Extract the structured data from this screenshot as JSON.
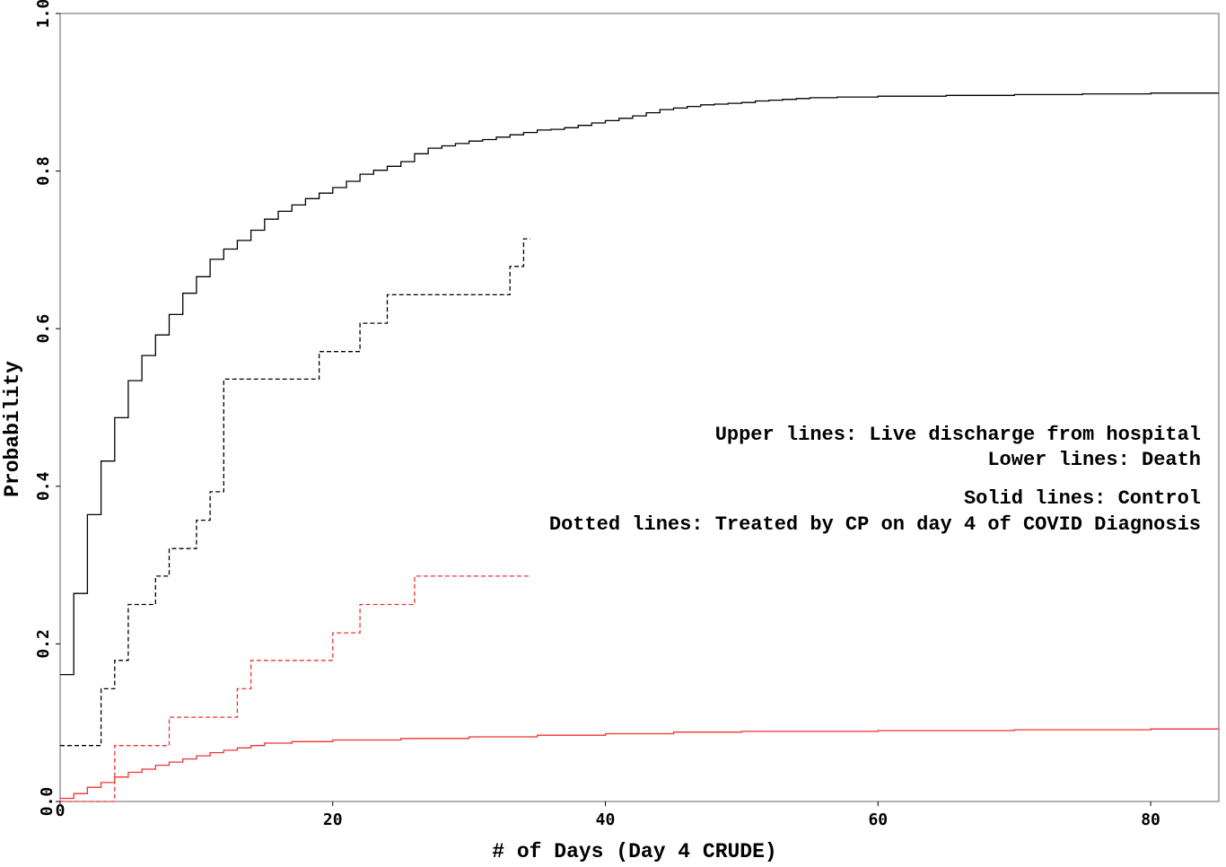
{
  "chart_data": {
    "type": "line",
    "xlabel": "# of Days (Day 4 CRUDE)",
    "ylabel": "Probability",
    "xlim": [
      0,
      85
    ],
    "ylim": [
      0,
      1
    ],
    "x_ticks": [
      0,
      20,
      40,
      60,
      80
    ],
    "y_ticks": [
      0.0,
      0.2,
      0.4,
      0.6,
      0.8,
      1.0
    ],
    "x_tick_labels": [
      "0",
      "20",
      "40",
      "60",
      "80"
    ],
    "y_tick_labels": [
      "0.0",
      "0.2",
      "0.4",
      "0.6",
      "0.8",
      "1.0"
    ],
    "annotations": [
      "Upper lines: Live discharge from hospital",
      "Lower lines: Death",
      "Solid lines: Control",
      "Dotted lines: Treated by CP on day 4 of COVID Diagnosis"
    ],
    "legend_placement": "right",
    "series": [
      {
        "color": "#000000",
        "dash": "solid",
        "x": [
          0,
          1,
          2,
          3,
          4,
          5,
          6,
          7,
          8,
          9,
          10,
          11,
          12,
          13,
          14,
          15,
          16,
          17,
          18,
          19,
          20,
          21,
          22,
          23,
          24,
          25,
          26,
          27,
          28,
          29,
          30,
          31,
          32,
          33,
          34,
          35,
          36,
          37,
          38,
          39,
          40,
          41,
          42,
          43,
          44,
          45,
          46,
          47,
          48,
          49,
          50,
          51,
          52,
          53,
          54,
          55,
          57,
          60,
          65,
          70,
          75,
          80,
          85
        ],
        "y": [
          0.161,
          0.264,
          0.364,
          0.432,
          0.487,
          0.534,
          0.566,
          0.592,
          0.618,
          0.645,
          0.666,
          0.688,
          0.701,
          0.712,
          0.725,
          0.739,
          0.749,
          0.757,
          0.765,
          0.772,
          0.779,
          0.787,
          0.796,
          0.801,
          0.806,
          0.812,
          0.822,
          0.829,
          0.832,
          0.835,
          0.838,
          0.84,
          0.843,
          0.846,
          0.849,
          0.852,
          0.853,
          0.855,
          0.858,
          0.861,
          0.864,
          0.867,
          0.87,
          0.874,
          0.878,
          0.88,
          0.882,
          0.884,
          0.885,
          0.886,
          0.887,
          0.889,
          0.89,
          0.891,
          0.892,
          0.893,
          0.894,
          0.895,
          0.896,
          0.897,
          0.898,
          0.899,
          0.899
        ]
      },
      {
        "color": "#000000",
        "dash": "dashed",
        "x": [
          0,
          3,
          4,
          5,
          7,
          8,
          10,
          11,
          12,
          19,
          22,
          24,
          33,
          34,
          34.5
        ],
        "y": [
          0.071,
          0.143,
          0.179,
          0.25,
          0.286,
          0.321,
          0.357,
          0.393,
          0.536,
          0.571,
          0.607,
          0.643,
          0.679,
          0.714,
          0.714
        ]
      },
      {
        "color": "#ee3333",
        "dash": "solid",
        "x": [
          0,
          1,
          2,
          3,
          4,
          5,
          6,
          7,
          8,
          9,
          10,
          11,
          12,
          13,
          14,
          15,
          17,
          20,
          25,
          30,
          35,
          40,
          45,
          50,
          60,
          70,
          80,
          85
        ],
        "y": [
          0.004,
          0.01,
          0.018,
          0.024,
          0.031,
          0.037,
          0.041,
          0.046,
          0.05,
          0.054,
          0.058,
          0.062,
          0.065,
          0.068,
          0.071,
          0.074,
          0.076,
          0.078,
          0.08,
          0.082,
          0.084,
          0.086,
          0.088,
          0.089,
          0.09,
          0.091,
          0.092,
          0.092
        ]
      },
      {
        "color": "#ee3333",
        "dash": "dashed",
        "x": [
          0,
          4,
          8,
          13,
          14,
          20,
          22,
          26,
          34.5
        ],
        "y": [
          0.0,
          0.071,
          0.107,
          0.143,
          0.179,
          0.214,
          0.25,
          0.286,
          0.286
        ]
      }
    ]
  }
}
